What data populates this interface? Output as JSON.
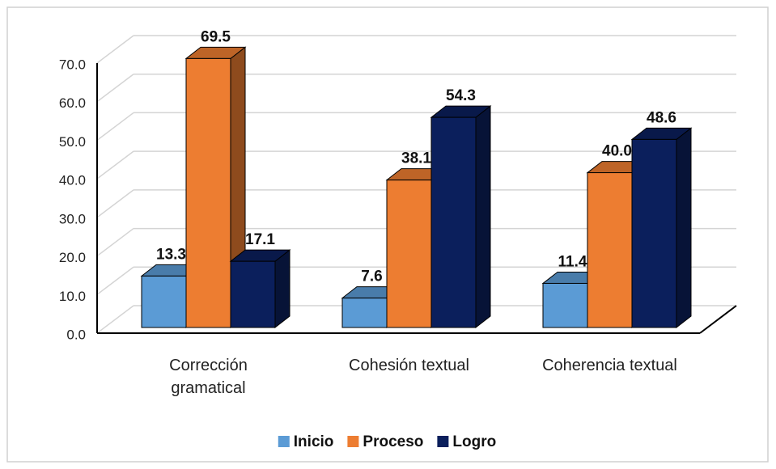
{
  "chart_data": {
    "type": "bar3d",
    "categories": [
      "Corrección gramatical",
      "Cohesión textual",
      "Coherencia textual"
    ],
    "series": [
      {
        "name": "Inicio",
        "color": "#5b9bd5",
        "values": [
          13.3,
          7.6,
          11.4
        ],
        "value_labels": [
          "13.3",
          "7.6",
          "11.4"
        ]
      },
      {
        "name": "Proceso",
        "color": "#ed7d31",
        "values": [
          69.5,
          38.1,
          40.0
        ],
        "value_labels": [
          "69.5",
          "38.1",
          "40.0"
        ]
      },
      {
        "name": "Logro",
        "color": "#0b1f5c",
        "values": [
          17.1,
          54.3,
          48.6
        ],
        "value_labels": [
          "17.1",
          "54.3",
          "48.6"
        ]
      }
    ],
    "ylim": [
      0,
      70
    ],
    "yticks": [
      {
        "value": 0,
        "label": "0.0"
      },
      {
        "value": 10,
        "label": "10.0"
      },
      {
        "value": 20,
        "label": "20.0"
      },
      {
        "value": 30,
        "label": "30.0"
      },
      {
        "value": 40,
        "label": "40.0"
      },
      {
        "value": 50,
        "label": "50.0"
      },
      {
        "value": 60,
        "label": "60.0"
      },
      {
        "value": 70,
        "label": "70.0"
      }
    ],
    "grid": true,
    "legend": "bottom"
  }
}
